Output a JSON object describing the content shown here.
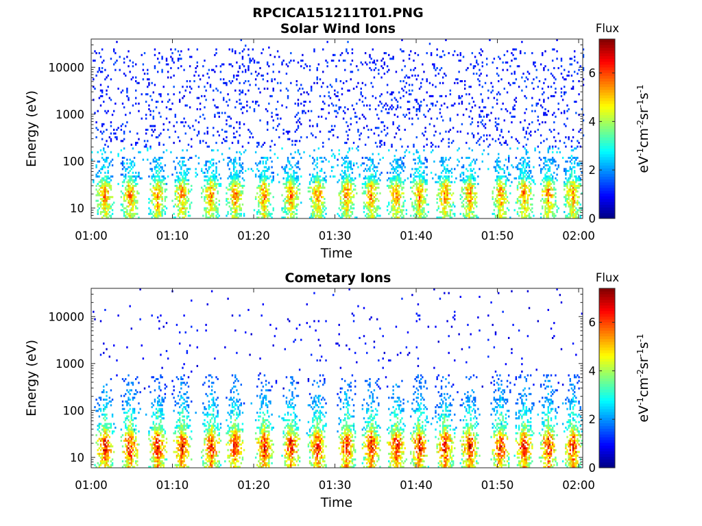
{
  "figure": {
    "title": "RPCICA151211T01.PNG"
  },
  "panels": [
    {
      "title": "Solar Wind Ions",
      "xlabel": "Time",
      "ylabel": "Energy (eV)",
      "colorbar_title": "Flux",
      "colorbar_label": "eV-1cm-2sr-1s-1"
    },
    {
      "title": "Cometary Ions",
      "xlabel": "Time",
      "ylabel": "Energy (eV)",
      "colorbar_title": "Flux",
      "colorbar_label": "eV-1cm-2sr-1s-1"
    }
  ],
  "chart_data": [
    {
      "type": "heatmap",
      "title": "Solar Wind Ions",
      "xlabel": "Time",
      "ylabel": "Energy (eV)",
      "x_ticks": [
        "01:00",
        "01:10",
        "01:20",
        "01:30",
        "01:40",
        "01:50",
        "02:00"
      ],
      "x_range_minutes": [
        0,
        60.5
      ],
      "y_ticks": [
        10,
        100,
        1000,
        10000
      ],
      "y_scale": "log",
      "ylim": [
        6,
        40000
      ],
      "colorbar": {
        "title": "Flux",
        "label": "eV-1cm-2sr-1s-1",
        "ticks": [
          0,
          2,
          4,
          6
        ],
        "range": [
          0,
          7.4
        ],
        "colormap": "jet"
      },
      "pulse_centers_minutes": [
        1.6,
        4.7,
        8.1,
        11.1,
        14.7,
        17.6,
        21.2,
        24.5,
        27.8,
        31.4,
        34.4,
        37.5,
        40.3,
        43.5,
        46.5,
        50.3,
        53.2,
        56.2,
        59.2
      ],
      "background": {
        "dense_energy_range": [
          150,
          25000
        ],
        "flux_level": 1.0
      },
      "pulse_profile": [
        {
          "energy": 8,
          "flux": 4.6
        },
        {
          "energy": 20,
          "flux": 5.8
        },
        {
          "energy": 30,
          "flux": 5.2
        },
        {
          "energy": 45,
          "flux": 3.2
        },
        {
          "energy": 120,
          "flux": 2.4
        }
      ]
    },
    {
      "type": "heatmap",
      "title": "Cometary Ions",
      "xlabel": "Time",
      "ylabel": "Energy (eV)",
      "x_ticks": [
        "01:00",
        "01:10",
        "01:20",
        "01:30",
        "01:40",
        "01:50",
        "02:00"
      ],
      "x_range_minutes": [
        0,
        60.5
      ],
      "y_ticks": [
        10,
        100,
        1000,
        10000
      ],
      "y_scale": "log",
      "ylim": [
        6,
        40000
      ],
      "colorbar": {
        "title": "Flux",
        "label": "eV-1cm-2sr-1s-1",
        "ticks": [
          0,
          2,
          4,
          6
        ],
        "range": [
          0,
          7.4
        ],
        "colormap": "jet"
      },
      "pulse_centers_minutes": [
        1.6,
        4.7,
        8.1,
        11.1,
        14.7,
        17.6,
        21.2,
        24.5,
        27.8,
        31.4,
        34.4,
        37.5,
        40.3,
        43.5,
        46.5,
        50.3,
        53.2,
        56.2,
        59.2
      ],
      "background": {
        "dense_energy_range": [
          1000,
          12000
        ],
        "flux_level": 0.8
      },
      "pulse_profile": [
        {
          "energy": 8,
          "flux": 5.4
        },
        {
          "energy": 15,
          "flux": 6.6
        },
        {
          "energy": 25,
          "flux": 6.2
        },
        {
          "energy": 40,
          "flux": 4.2
        },
        {
          "energy": 150,
          "flux": 2.5
        },
        {
          "energy": 600,
          "flux": 1.8
        }
      ]
    }
  ]
}
